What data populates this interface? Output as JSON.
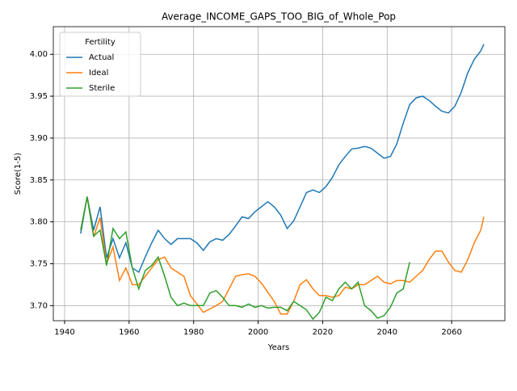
{
  "chart_data": {
    "type": "line",
    "title": "Average_INCOME_GAPS_TOO_BIG_of_Whole_Pop",
    "x_label": "Years",
    "y_label": "Score(1-5)",
    "x": [
      1945,
      1947,
      1949,
      1951,
      1953,
      1955,
      1957,
      1959,
      1961,
      1963,
      1965,
      1967,
      1969,
      1971,
      1973,
      1975,
      1977,
      1979,
      1981,
      1983,
      1985,
      1987,
      1989,
      1991,
      1993,
      1995,
      1997,
      1999,
      2001,
      2003,
      2005,
      2007,
      2009,
      2011,
      2013,
      2015,
      2017,
      2019,
      2021,
      2023,
      2025,
      2027,
      2029,
      2031,
      2033,
      2035,
      2037,
      2039,
      2041,
      2043,
      2045,
      2047,
      2049,
      2051,
      2053,
      2055,
      2057,
      2059,
      2061,
      2063,
      2065,
      2067,
      2069,
      2070
    ],
    "series": [
      {
        "name": "Actual",
        "color": "#1f77b4",
        "values": [
          3.786,
          3.83,
          3.79,
          3.818,
          3.757,
          3.78,
          3.757,
          3.775,
          3.745,
          3.74,
          3.758,
          3.775,
          3.79,
          3.78,
          3.773,
          3.78,
          3.78,
          3.78,
          3.775,
          3.766,
          3.776,
          3.78,
          3.778,
          3.785,
          3.795,
          3.806,
          3.804,
          3.812,
          3.818,
          3.824,
          3.818,
          3.808,
          3.792,
          3.801,
          3.818,
          3.835,
          3.838,
          3.835,
          3.842,
          3.853,
          3.868,
          3.878,
          3.887,
          3.888,
          3.89,
          3.888,
          3.882,
          3.876,
          3.878,
          3.893,
          3.918,
          3.94,
          3.948,
          3.95,
          3.945,
          3.938,
          3.932,
          3.93,
          3.938,
          3.955,
          3.978,
          3.994,
          4.004,
          4.012
        ]
      },
      {
        "name": "Ideal",
        "color": "#ff7f0e",
        "values": [
          3.79,
          3.83,
          3.782,
          3.805,
          3.75,
          3.77,
          3.73,
          3.745,
          3.725,
          3.725,
          3.735,
          3.745,
          3.755,
          3.758,
          3.745,
          3.74,
          3.735,
          3.712,
          3.702,
          3.692,
          3.696,
          3.7,
          3.705,
          3.72,
          3.735,
          3.737,
          3.738,
          3.735,
          3.727,
          3.716,
          3.705,
          3.69,
          3.69,
          3.705,
          3.725,
          3.731,
          3.72,
          3.712,
          3.712,
          3.71,
          3.712,
          3.722,
          3.72,
          3.725,
          3.725,
          3.73,
          3.735,
          3.728,
          3.726,
          3.73,
          3.73,
          3.728,
          3.735,
          3.742,
          3.755,
          3.765,
          3.765,
          3.752,
          3.742,
          3.74,
          3.755,
          3.775,
          3.79,
          3.806
        ]
      },
      {
        "name": "Sterile",
        "color": "#2ca02c",
        "values": [
          3.79,
          3.83,
          3.783,
          3.79,
          3.748,
          3.792,
          3.78,
          3.788,
          3.745,
          3.72,
          3.742,
          3.748,
          3.758,
          3.735,
          3.71,
          3.7,
          3.703,
          3.7,
          3.7,
          3.7,
          3.715,
          3.718,
          3.71,
          3.7,
          3.7,
          3.698,
          3.702,
          3.698,
          3.7,
          3.697,
          3.698,
          3.698,
          3.694,
          3.705,
          3.7,
          3.695,
          3.684,
          3.692,
          3.71,
          3.706,
          3.72,
          3.728,
          3.72,
          3.728,
          3.7,
          3.694,
          3.685,
          3.688,
          3.698,
          3.715,
          3.72,
          3.752,
          null,
          null,
          null,
          null,
          null,
          null,
          null,
          null,
          null,
          null,
          null,
          null
        ]
      }
    ],
    "xlim": [
      1936.5,
      2076.5
    ],
    "ylim": [
      3.682,
      4.033
    ],
    "xticks": [
      1940,
      1960,
      1980,
      2000,
      2020,
      2040,
      2060
    ],
    "yticks": [
      {
        "value": 3.7,
        "label": "3.70"
      },
      3.75,
      {
        "value": 3.8,
        "label": "3.80"
      },
      3.85,
      {
        "value": 3.9,
        "label": "3.90"
      },
      3.95,
      {
        "value": 4.0,
        "label": "4.00"
      }
    ],
    "grid": true,
    "legend_title": "Fertility",
    "legend_position": "upper-left"
  }
}
